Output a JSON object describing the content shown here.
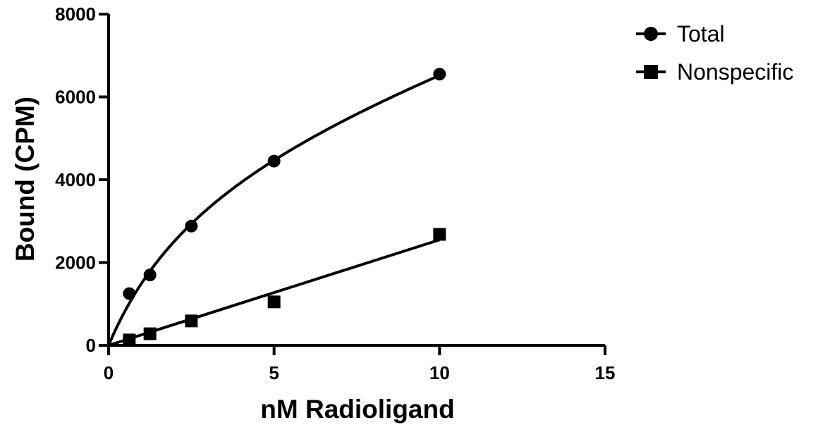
{
  "chart_data": {
    "type": "scatter",
    "xlabel": "nM Radioligand",
    "ylabel": "Bound (CPM)",
    "xlim": [
      0,
      15
    ],
    "ylim": [
      0,
      8000
    ],
    "x_ticks": [
      "0",
      "5",
      "10",
      "15"
    ],
    "y_ticks": [
      "0",
      "2000",
      "4000",
      "6000",
      "8000"
    ],
    "grid": false,
    "legend_position": "top-right",
    "series": [
      {
        "name": "Total",
        "marker": "circle",
        "color": "#000000",
        "x": [
          0.625,
          1.25,
          2.5,
          5,
          10
        ],
        "y": [
          1250,
          1700,
          2880,
          4450,
          6550
        ],
        "fit": "one-site total binding curve"
      },
      {
        "name": "Nonspecific",
        "marker": "square",
        "color": "#000000",
        "x": [
          0.625,
          1.25,
          2.5,
          5,
          10
        ],
        "y": [
          130,
          280,
          590,
          1050,
          2680
        ],
        "fit": "linear"
      }
    ]
  }
}
